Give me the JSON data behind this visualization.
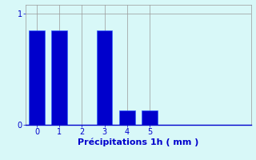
{
  "categories": [
    0,
    1,
    2,
    3,
    4,
    5
  ],
  "values": [
    0.85,
    0.85,
    0.0,
    0.85,
    0.13,
    0.13
  ],
  "bar_color": "#0000cc",
  "bar_edge_color": "#3366ff",
  "background_color": "#d8f8f8",
  "title": "",
  "xlabel": "Précipitations 1h ( mm )",
  "ylabel": "",
  "ylim": [
    0,
    1.08
  ],
  "xlim": [
    -0.5,
    9.5
  ],
  "yticks": [
    0,
    1
  ],
  "xticks": [
    0,
    1,
    2,
    3,
    4,
    5
  ],
  "grid_color": "#999999",
  "text_color": "#0000cc",
  "xlabel_fontsize": 8,
  "tick_fontsize": 7,
  "bar_width": 0.7
}
